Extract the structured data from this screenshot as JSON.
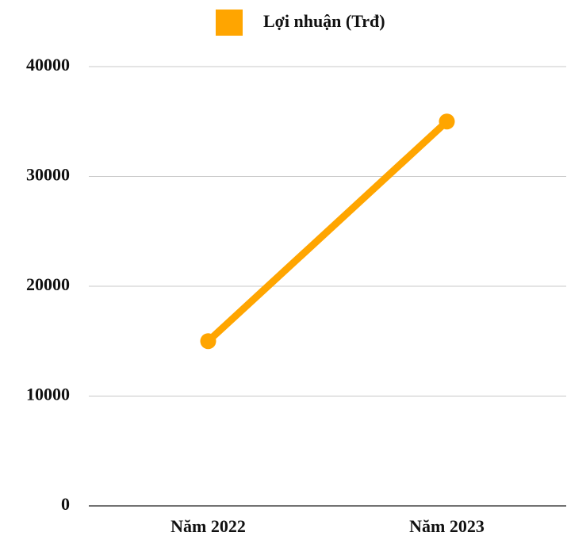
{
  "chart_data": {
    "type": "line",
    "categories": [
      "Năm 2022",
      "Năm 2023"
    ],
    "series": [
      {
        "name": "Lợi nhuận (Trđ)",
        "color": "#ffa500",
        "values": [
          15000,
          35000
        ]
      }
    ],
    "ylim": [
      0,
      40000
    ],
    "yticks": [
      0,
      10000,
      20000,
      30000,
      40000
    ],
    "grid": true,
    "legend": "top"
  }
}
